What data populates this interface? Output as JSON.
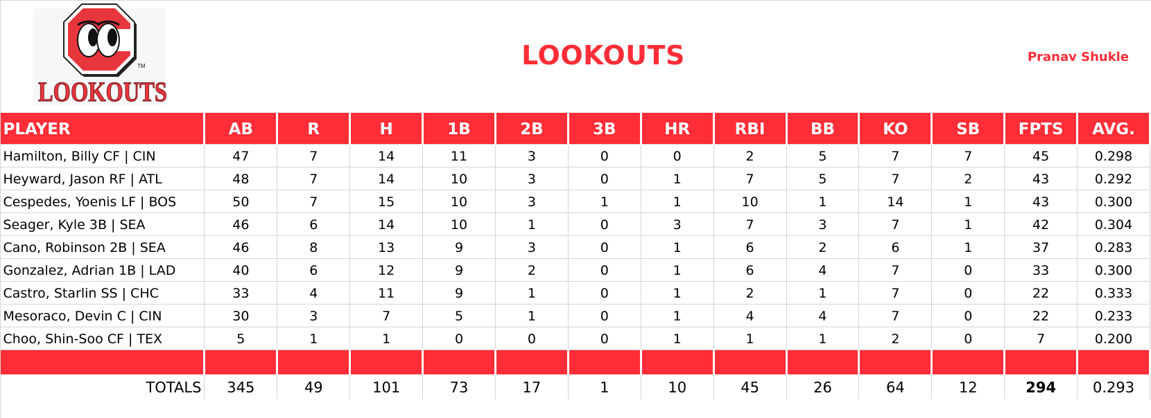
{
  "header": {
    "logo_alt": "Lookouts logo",
    "logo_text": "LOOKOUTS",
    "logo_tm": "TM",
    "title": "LOOKOUTS",
    "owner": "Pranav Shukle"
  },
  "colors": {
    "accent": "#ff2d37",
    "grid": "#d4d4d4"
  },
  "table": {
    "columns": [
      "PLAYER",
      "AB",
      "R",
      "H",
      "1B",
      "2B",
      "3B",
      "HR",
      "RBI",
      "BB",
      "KO",
      "SB",
      "FPTS",
      "AVG."
    ],
    "rows": [
      [
        "Hamilton, Billy CF | CIN",
        "47",
        "7",
        "14",
        "11",
        "3",
        "0",
        "0",
        "2",
        "5",
        "7",
        "7",
        "45",
        "0.298"
      ],
      [
        "Heyward, Jason RF | ATL",
        "48",
        "7",
        "14",
        "10",
        "3",
        "0",
        "1",
        "7",
        "5",
        "7",
        "2",
        "43",
        "0.292"
      ],
      [
        "Cespedes, Yoenis LF | BOS",
        "50",
        "7",
        "15",
        "10",
        "3",
        "1",
        "1",
        "10",
        "1",
        "14",
        "1",
        "43",
        "0.300"
      ],
      [
        "Seager, Kyle 3B | SEA",
        "46",
        "6",
        "14",
        "10",
        "1",
        "0",
        "3",
        "7",
        "3",
        "7",
        "1",
        "42",
        "0.304"
      ],
      [
        "Cano, Robinson 2B | SEA",
        "46",
        "8",
        "13",
        "9",
        "3",
        "0",
        "1",
        "6",
        "2",
        "6",
        "1",
        "37",
        "0.283"
      ],
      [
        "Gonzalez, Adrian 1B | LAD",
        "40",
        "6",
        "12",
        "9",
        "2",
        "0",
        "1",
        "6",
        "4",
        "7",
        "0",
        "33",
        "0.300"
      ],
      [
        "Castro, Starlin SS | CHC",
        "33",
        "4",
        "11",
        "9",
        "1",
        "0",
        "1",
        "2",
        "1",
        "7",
        "0",
        "22",
        "0.333"
      ],
      [
        "Mesoraco, Devin C | CIN",
        "30",
        "3",
        "7",
        "5",
        "1",
        "0",
        "1",
        "4",
        "4",
        "7",
        "0",
        "22",
        "0.233"
      ],
      [
        "Choo, Shin-Soo CF | TEX",
        "5",
        "1",
        "1",
        "0",
        "0",
        "0",
        "1",
        "1",
        "1",
        "2",
        "0",
        "7",
        "0.200"
      ]
    ],
    "totals": [
      "TOTALS",
      "345",
      "49",
      "101",
      "73",
      "17",
      "1",
      "10",
      "45",
      "26",
      "64",
      "12",
      "294",
      "0.293"
    ]
  }
}
